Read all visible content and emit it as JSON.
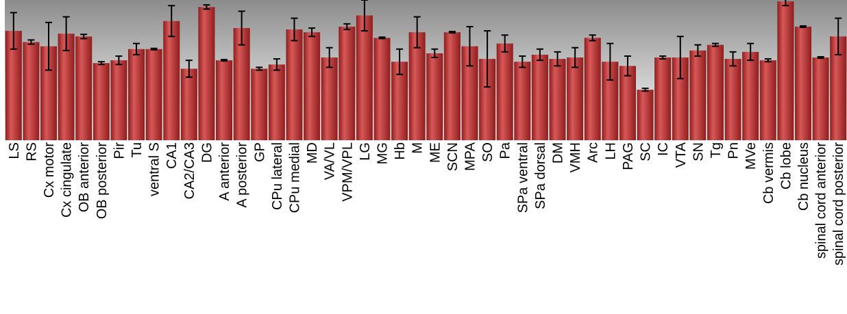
{
  "chart_data": {
    "type": "bar",
    "title": "",
    "xlabel": "",
    "ylabel": "",
    "ylim": [
      0,
      1.0
    ],
    "grid": false,
    "legend": "none",
    "colors": {
      "bar_top": "#d85858",
      "bar_bottom": "#8e1d1d",
      "bg_top": "#8c8c8c",
      "bg_bottom": "#ffffff",
      "error_bar": "#000000"
    },
    "categories": [
      "LS",
      "RS",
      "Cx motor",
      "Cx cingulate",
      "OB anterior",
      "OB posterior",
      "Pir",
      "Tu",
      "ventral S",
      "CA1",
      "CA2/CA3",
      "DG",
      "A anterior",
      "A posterior",
      "GP",
      "CPu lateral",
      "CPu medial",
      "MD",
      "VA/VL",
      "VPM/VPL",
      "LG",
      "MG",
      "Hb",
      "M",
      "ME",
      "SCN",
      "MPA",
      "SO",
      "Pa",
      "SPa ventral",
      "SPa dorsal",
      "DM",
      "VMH",
      "Arc",
      "LH",
      "PAG",
      "SC",
      "IC",
      "VTA",
      "SN",
      "Tg",
      "Pn",
      "MVe",
      "Cb vermis",
      "Cb lobe",
      "Cb nucleus",
      "spinal cord anterior",
      "spinal cord posterior"
    ],
    "values": [
      0.78,
      0.7,
      0.67,
      0.76,
      0.74,
      0.55,
      0.57,
      0.65,
      0.65,
      0.85,
      0.51,
      0.95,
      0.57,
      0.8,
      0.51,
      0.54,
      0.79,
      0.77,
      0.59,
      0.81,
      0.89,
      0.73,
      0.56,
      0.77,
      0.62,
      0.77,
      0.67,
      0.58,
      0.69,
      0.56,
      0.61,
      0.58,
      0.59,
      0.73,
      0.56,
      0.53,
      0.36,
      0.59,
      0.59,
      0.64,
      0.68,
      0.58,
      0.63,
      0.57,
      0.99,
      0.81,
      0.59,
      0.74
    ],
    "errors": [
      0.13,
      0.015,
      0.17,
      0.12,
      0.015,
      0.01,
      0.03,
      0.04,
      0.005,
      0.11,
      0.06,
      0.015,
      0.005,
      0.12,
      0.01,
      0.04,
      0.08,
      0.03,
      0.07,
      0.02,
      0.11,
      0.005,
      0.09,
      0.11,
      0.03,
      0.005,
      0.14,
      0.2,
      0.06,
      0.04,
      0.04,
      0.05,
      0.07,
      0.02,
      0.13,
      0.07,
      0.01,
      0.01,
      0.15,
      0.04,
      0.01,
      0.05,
      0.06,
      0.01,
      0.03,
      0.005,
      0.005,
      0.13
    ]
  }
}
